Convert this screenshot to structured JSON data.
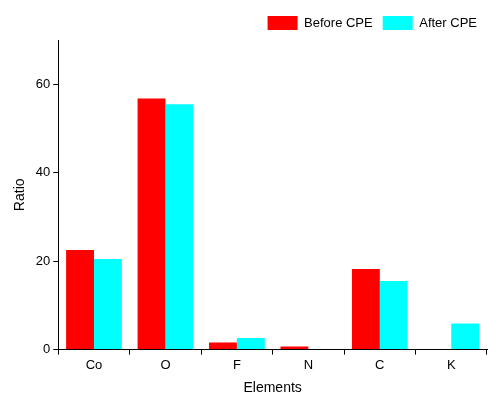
{
  "chart_data": {
    "type": "bar",
    "x_label": "Elements",
    "y_label": "Ratio",
    "categories": [
      "Co",
      "O",
      "F",
      "N",
      "C",
      "K"
    ],
    "series": [
      {
        "name": "Before CPE",
        "color": "#ff0000",
        "values": [
          22.5,
          56.8,
          1.6,
          0.7,
          18.2,
          0
        ]
      },
      {
        "name": "After CPE",
        "color": "#00ffff",
        "values": [
          20.5,
          55.5,
          2.6,
          0,
          15.5,
          5.9
        ]
      }
    ],
    "ylim": [
      0,
      70
    ],
    "yticks": [
      0,
      20,
      40,
      60
    ],
    "grid": false,
    "legend": "top-right"
  }
}
